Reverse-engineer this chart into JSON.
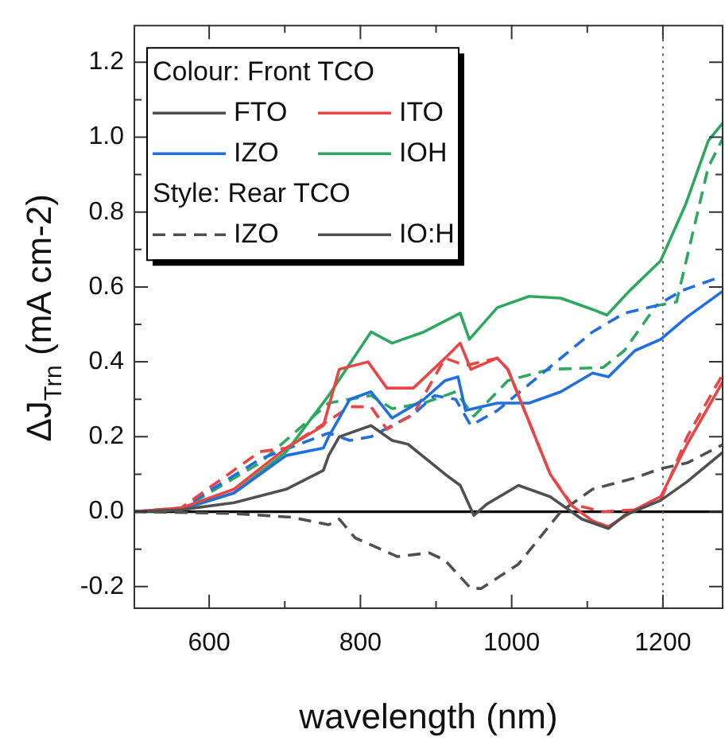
{
  "chart_data": {
    "type": "line",
    "xlabel": "wavelength (nm)",
    "ylabel": "ΔJ$_{Trn}$ (mA cm-2)",
    "legend_title": "Colour: Front TCO",
    "legend": "top left",
    "grid": false,
    "marker": "none",
    "xlim": [
      500,
      1280
    ],
    "ylim": [
      -0.26,
      1.3
    ],
    "xticks": [
      600,
      {
        "value": 700,
        "label": null
      },
      800,
      {
        "value": 900,
        "label": null
      },
      1000,
      {
        "value": 1100,
        "label": null
      },
      1200
    ],
    "yticks": [
      -0.2,
      {
        "value": -0.1,
        "label": null
      },
      "0.0",
      {
        "value": 0.1,
        "label": null
      },
      0.2,
      {
        "value": 0.3,
        "label": null
      },
      0.4,
      {
        "value": 0.5,
        "label": null
      },
      0.6,
      {
        "value": 0.7,
        "label": null
      },
      0.8,
      {
        "value": 0.9,
        "label": null
      },
      "1.0",
      {
        "value": 1.1,
        "label": null
      },
      1.2
    ],
    "ref_lines": [
      {
        "axis": "y",
        "value": 0,
        "color": "#000000",
        "line_style": "solid"
      },
      {
        "axis": "x",
        "value": 1200,
        "color": "#606060",
        "line_style": "dotted"
      }
    ],
    "annotations": [
      "Style: Rear TCO",
      "IZO",
      "IO:H"
    ],
    "series": [
      {
        "name": "FTO",
        "color": "#505050",
        "line_style": "solid",
        "x": [
          500,
          563,
          633,
          702,
          751,
          758,
          772,
          814,
          842,
          863,
          912,
          932,
          950,
          967,
          1009,
          1051,
          1093,
          1128,
          1149,
          1197,
          1232,
          1280
        ],
        "values": [
          0,
          0.005,
          0.024,
          0.06,
          0.11,
          0.15,
          0.2,
          0.23,
          0.19,
          0.18,
          0.1,
          0.07,
          -0.01,
          0.02,
          0.07,
          0.04,
          -0.02,
          -0.045,
          -0.01,
          0.03,
          0.08,
          0.16
        ]
      },
      {
        "name": "ITO",
        "color": "#e84545",
        "line_style": "solid",
        "x": [
          500,
          563,
          633,
          702,
          751,
          772,
          810,
          835,
          870,
          912,
          932,
          946,
          981,
          995,
          1023,
          1051,
          1079,
          1107,
          1128,
          1163,
          1197,
          1232,
          1280
        ],
        "values": [
          0,
          0.01,
          0.06,
          0.17,
          0.23,
          0.38,
          0.4,
          0.33,
          0.33,
          0.41,
          0.45,
          0.38,
          0.41,
          0.38,
          0.24,
          0.1,
          0.017,
          -0.025,
          -0.04,
          0.005,
          0.04,
          0.18,
          0.35
        ]
      },
      {
        "name": "IZO",
        "color": "#1f6fe0",
        "line_style": "solid",
        "x": [
          500,
          563,
          633,
          702,
          751,
          758,
          786,
          814,
          842,
          884,
          912,
          929,
          939,
          981,
          1023,
          1065,
          1107,
          1128,
          1163,
          1197,
          1232,
          1280
        ],
        "values": [
          0,
          0.008,
          0.05,
          0.15,
          0.17,
          0.2,
          0.3,
          0.32,
          0.25,
          0.3,
          0.35,
          0.36,
          0.27,
          0.29,
          0.29,
          0.32,
          0.37,
          0.36,
          0.43,
          0.46,
          0.52,
          0.59
        ]
      },
      {
        "name": "IOH",
        "color": "#2ea860",
        "line_style": "solid",
        "x": [
          500,
          563,
          633,
          702,
          758,
          814,
          842,
          884,
          932,
          944,
          981,
          1023,
          1065,
          1107,
          1126,
          1156,
          1197,
          1230,
          1260,
          1280
        ],
        "values": [
          0,
          0.005,
          0.05,
          0.16,
          0.31,
          0.48,
          0.45,
          0.48,
          0.53,
          0.46,
          0.545,
          0.575,
          0.57,
          0.54,
          0.525,
          0.59,
          0.67,
          0.82,
          0.99,
          1.04
        ]
      },
      {
        "color": "#505050",
        "line_style": "dashed",
        "x": [
          500,
          633,
          709,
          758,
          772,
          793,
          849,
          891,
          912,
          946,
          960,
          1009,
          1065,
          1107,
          1163,
          1197,
          1232,
          1280
        ],
        "values": [
          0,
          -0.005,
          -0.015,
          -0.035,
          -0.02,
          -0.07,
          -0.12,
          -0.11,
          -0.13,
          -0.205,
          -0.205,
          -0.14,
          0,
          0.06,
          0.09,
          0.115,
          0.13,
          0.18
        ]
      },
      {
        "color": "#e84545",
        "line_style": "dashed",
        "x": [
          500,
          563,
          667,
          702,
          786,
          814,
          835,
          870,
          912,
          939,
          981,
          995,
          1023,
          1051,
          1079,
          1121,
          1163,
          1197,
          1232,
          1280
        ],
        "values": [
          0,
          0.01,
          0.16,
          0.17,
          0.28,
          0.28,
          0.22,
          0.26,
          0.41,
          0.39,
          0.41,
          0.38,
          0.24,
          0.1,
          0.02,
          0,
          0.005,
          0.03,
          0.2,
          0.37
        ]
      },
      {
        "color": "#1f6fe0",
        "line_style": "dashed",
        "x": [
          500,
          563,
          667,
          758,
          786,
          814,
          870,
          898,
          926,
          946,
          981,
          1023,
          1107,
          1149,
          1191,
          1225,
          1280
        ],
        "values": [
          0,
          0.008,
          0.14,
          0.21,
          0.19,
          0.2,
          0.26,
          0.31,
          0.3,
          0.23,
          0.27,
          0.34,
          0.48,
          0.53,
          0.55,
          0.59,
          0.63
        ]
      },
      {
        "color": "#2ea860",
        "line_style": "dashed",
        "x": [
          500,
          563,
          667,
          758,
          814,
          842,
          884,
          926,
          950,
          995,
          1051,
          1121,
          1149,
          1191,
          1218,
          1260,
          1280
        ],
        "values": [
          0,
          0.006,
          0.13,
          0.29,
          0.31,
          0.275,
          0.29,
          0.32,
          0.255,
          0.35,
          0.38,
          0.385,
          0.43,
          0.55,
          0.56,
          0.92,
          1.0
        ]
      }
    ]
  }
}
